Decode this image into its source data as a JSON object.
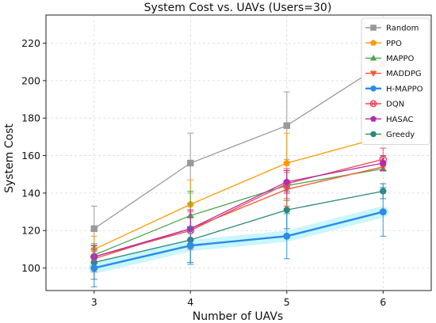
{
  "chart_data": {
    "type": "line",
    "title": "System Cost vs. UAVs (Users=30)",
    "xlabel": "Number of UAVs",
    "ylabel": "System Cost",
    "x": [
      3,
      4,
      5,
      6
    ],
    "xlim": [
      2.5,
      6.5
    ],
    "ylim": [
      88,
      235
    ],
    "yticks": [
      100,
      120,
      140,
      160,
      180,
      200,
      220
    ],
    "grid": true,
    "legend_position": "top-right",
    "series": [
      {
        "name": "Random",
        "color": "#999999",
        "marker": "square",
        "values": [
          121,
          156,
          176,
          209
        ],
        "errors": [
          12,
          16,
          18,
          0
        ]
      },
      {
        "name": "PPO",
        "color": "#ff9900",
        "marker": "pentagon",
        "values": [
          110,
          134,
          156,
          170
        ],
        "errors": [
          7,
          13,
          16,
          0
        ]
      },
      {
        "name": "MAPPO",
        "color": "#4aa84a",
        "marker": "triangle-up",
        "values": [
          107,
          128,
          144,
          153
        ],
        "errors": [
          6,
          13,
          8,
          0
        ]
      },
      {
        "name": "MADDPG",
        "color": "#ff5533",
        "marker": "triangle-down",
        "values": [
          105,
          121,
          142,
          154
        ],
        "errors": [
          7,
          10,
          9,
          0
        ]
      },
      {
        "name": "H-MAPPO",
        "color": "#2b8ce6",
        "marker": "circle",
        "values": [
          100,
          112,
          117,
          130
        ],
        "errors": [
          10,
          10,
          12,
          13
        ]
      },
      {
        "name": "DQN",
        "color": "#ee4455",
        "marker": "x-circle",
        "values": [
          106,
          120,
          145,
          158
        ],
        "errors": [
          6,
          10,
          8,
          6
        ]
      },
      {
        "name": "HASAC",
        "color": "#b02cb0",
        "marker": "pentagon",
        "values": [
          106,
          121,
          146,
          156
        ],
        "errors": [
          6,
          10,
          6,
          4
        ]
      },
      {
        "name": "Greedy",
        "color": "#2a8a7a",
        "marker": "circle",
        "values": [
          103,
          115,
          131,
          141
        ],
        "errors": [
          9,
          12,
          10,
          4
        ]
      }
    ]
  }
}
